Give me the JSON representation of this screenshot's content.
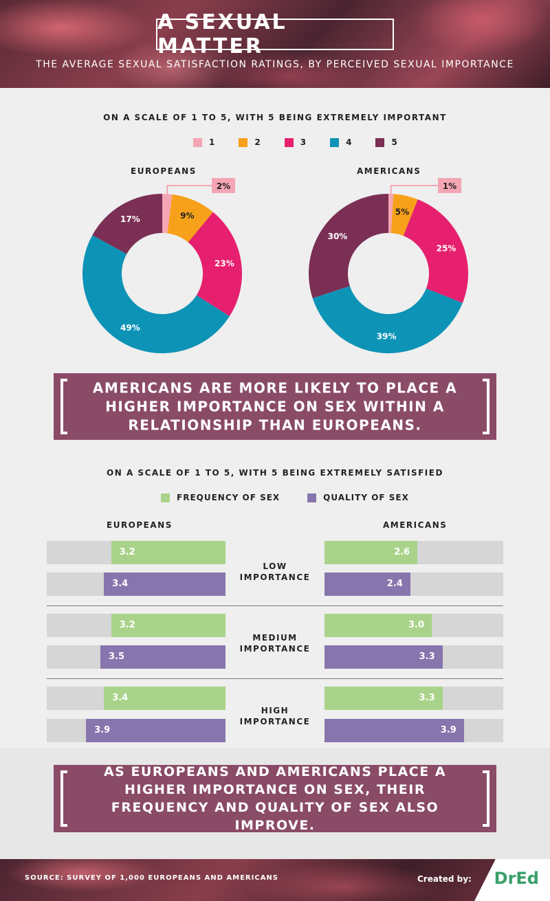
{
  "header": {
    "title": "A SEXUAL MATTER",
    "subtitle": "THE AVERAGE SEXUAL SATISFACTION RATINGS, BY PERCEIVED SEXUAL IMPORTANCE"
  },
  "colors": {
    "c1": "#f4a6b4",
    "c2": "#f7a11a",
    "c3": "#e6206e",
    "c4": "#0d93b6",
    "c5": "#7b2f54",
    "frequency": "#a9d38a",
    "quality": "#8775ad",
    "banner": "#8a4b67"
  },
  "importance_section": {
    "label": "ON A SCALE OF 1 TO 5, WITH 5 BEING EXTREMELY IMPORTANT",
    "legend": [
      "1",
      "2",
      "3",
      "4",
      "5"
    ]
  },
  "banner1": {
    "text": "AMERICANS ARE MORE LIKELY TO PLACE A HIGHER IMPORTANCE ON SEX WITHIN A RELATIONSHIP THAN EUROPEANS."
  },
  "satisfaction_section": {
    "label": "ON A SCALE OF 1 TO 5, WITH 5 BEING EXTREMELY SATISFIED",
    "legend": [
      "FREQUENCY OF SEX",
      "QUALITY OF SEX"
    ],
    "left_label": "EUROPEANS",
    "right_label": "AMERICANS",
    "levels": [
      "LOW IMPORTANCE",
      "MEDIUM IMPORTANCE",
      "HIGH IMPORTANCE"
    ]
  },
  "banner2": {
    "text": "AS EUROPEANS AND AMERICANS PLACE A HIGHER IMPORTANCE ON SEX, THEIR FREQUENCY AND QUALITY OF SEX ALSO IMPROVE."
  },
  "footer": {
    "source": "SOURCE: SURVEY OF 1,000 EUROPEANS AND AMERICANS",
    "created_by": "Created by:",
    "logo": "DrEd"
  },
  "chart_data": [
    {
      "type": "pie",
      "title": "EUROPEANS",
      "categories": [
        "1",
        "2",
        "3",
        "4",
        "5"
      ],
      "values": [
        2,
        9,
        23,
        49,
        17
      ],
      "labels": [
        "2%",
        "9%",
        "23%",
        "49%",
        "17%"
      ]
    },
    {
      "type": "pie",
      "title": "AMERICANS",
      "categories": [
        "1",
        "2",
        "3",
        "4",
        "5"
      ],
      "values": [
        1,
        5,
        25,
        39,
        30
      ],
      "labels": [
        "1%",
        "5%",
        "25%",
        "39%",
        "30%"
      ]
    },
    {
      "type": "bar",
      "title": "EUROPEANS",
      "categories": [
        "LOW IMPORTANCE",
        "MEDIUM IMPORTANCE",
        "HIGH IMPORTANCE"
      ],
      "series": [
        {
          "name": "FREQUENCY OF SEX",
          "values": [
            3.2,
            3.2,
            3.4
          ],
          "labels": [
            "3.2",
            "3.2",
            "3.4"
          ]
        },
        {
          "name": "QUALITY OF SEX",
          "values": [
            3.4,
            3.5,
            3.9
          ],
          "labels": [
            "3.4",
            "3.5",
            "3.9"
          ]
        }
      ],
      "ylim": [
        0,
        5
      ]
    },
    {
      "type": "bar",
      "title": "AMERICANS",
      "categories": [
        "LOW IMPORTANCE",
        "MEDIUM IMPORTANCE",
        "HIGH IMPORTANCE"
      ],
      "series": [
        {
          "name": "FREQUENCY OF SEX",
          "values": [
            2.6,
            3.0,
            3.3
          ],
          "labels": [
            "2.6",
            "3.0",
            "3.3"
          ]
        },
        {
          "name": "QUALITY OF SEX",
          "values": [
            2.4,
            3.3,
            3.9
          ],
          "labels": [
            "2.4",
            "3.3",
            "3.9"
          ]
        }
      ],
      "ylim": [
        0,
        5
      ]
    }
  ]
}
